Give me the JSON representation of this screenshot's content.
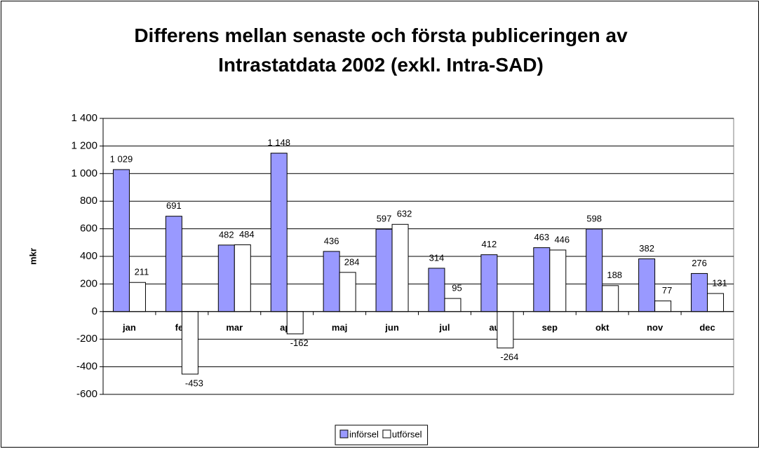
{
  "chart_data": {
    "type": "bar",
    "title": "Differens mellan senaste och första publiceringen av Intrastatdata 2002 (exkl. Intra-SAD)",
    "y_label": "mkr",
    "categories": [
      "jan",
      "feb",
      "mar",
      "apr",
      "maj",
      "jun",
      "jul",
      "aug",
      "sep",
      "okt",
      "nov",
      "dec"
    ],
    "series": [
      {
        "name": "införsel",
        "color": "#9999ff",
        "values": [
          1029,
          691,
          482,
          1148,
          436,
          597,
          314,
          412,
          463,
          598,
          382,
          276
        ],
        "value_labels": [
          "1 029",
          "691",
          "482",
          "1 148",
          "436",
          "597",
          "314",
          "412",
          "463",
          "598",
          "382",
          "276"
        ]
      },
      {
        "name": "utförsel",
        "color": "#ffffff",
        "values": [
          211,
          -453,
          484,
          -162,
          284,
          632,
          95,
          -264,
          446,
          188,
          77,
          131
        ]
      }
    ],
    "ylim": [
      -600,
      1400
    ],
    "yticks": [
      -600,
      -400,
      -200,
      0,
      200,
      400,
      600,
      800,
      {
        "value": 1000,
        "label": "1 000"
      },
      {
        "value": 1200,
        "label": "1 200"
      },
      {
        "value": 1400,
        "label": "1 400"
      }
    ],
    "grid": true,
    "legend": "bottom"
  }
}
